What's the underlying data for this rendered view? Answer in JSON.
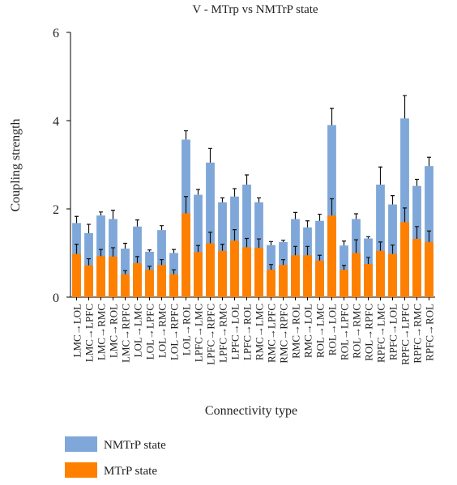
{
  "chart_data": {
    "type": "bar",
    "title": "V - MTrp vs NMTrP state",
    "x_label": "Connectivity type",
    "y_label": "Coupling strength",
    "categories": [
      "LMC→LOL",
      "LMC→LPFC",
      "LMC→RMC",
      "LMC→ROL",
      "LMC→RPFC",
      "LOL→LMC",
      "LOL→LPFC",
      "LOL→RMC",
      "LOL→RPFC",
      "LOL→ROL",
      "LPFC→LMC",
      "LPFC→RPFC",
      "LPFC→RMC",
      "LPFC→LOL",
      "LPFC→ROL",
      "RMC→LMC",
      "RMC→LPFC",
      "RMC→RPFC",
      "RMC→ROL",
      "RMC→LOL",
      "ROL→LMC",
      "ROL→LOL",
      "ROL→LPFC",
      "ROL→RMC",
      "ROL→RPFC",
      "RPFC→LMC",
      "RPFC→LOL",
      "RPFC→LPFC",
      "RPFC→RMC",
      "RPFC→ROL"
    ],
    "series": [
      {
        "name": "NMTrP state",
        "color": "#7fa7d9",
        "values": [
          1.68,
          1.45,
          1.85,
          1.77,
          1.1,
          1.6,
          1.03,
          1.52,
          1.0,
          3.57,
          2.32,
          3.05,
          2.15,
          2.28,
          2.55,
          2.15,
          1.18,
          1.25,
          1.77,
          1.58,
          1.73,
          3.9,
          1.17,
          1.77,
          1.33,
          2.55,
          2.1,
          4.05,
          2.52,
          2.97
        ],
        "errors": [
          0.15,
          0.2,
          0.08,
          0.2,
          0.12,
          0.15,
          0.04,
          0.1,
          0.08,
          0.2,
          0.12,
          0.32,
          0.1,
          0.18,
          0.22,
          0.1,
          0.08,
          0.04,
          0.15,
          0.15,
          0.15,
          0.38,
          0.1,
          0.12,
          0.04,
          0.4,
          0.2,
          0.52,
          0.15,
          0.2
        ]
      },
      {
        "name": "MTrP state",
        "color": "#ff8000",
        "values": [
          0.98,
          0.72,
          0.93,
          0.92,
          0.52,
          0.77,
          0.62,
          0.73,
          0.52,
          1.9,
          1.02,
          1.22,
          1.05,
          1.28,
          1.13,
          1.12,
          0.62,
          0.73,
          0.95,
          0.95,
          0.83,
          1.85,
          0.62,
          1.0,
          0.75,
          1.05,
          0.98,
          1.7,
          1.32,
          1.25
        ],
        "errors": [
          0.22,
          0.15,
          0.15,
          0.2,
          0.08,
          0.15,
          0.08,
          0.12,
          0.1,
          0.38,
          0.15,
          0.25,
          0.15,
          0.25,
          0.2,
          0.2,
          0.12,
          0.12,
          0.2,
          0.2,
          0.12,
          0.38,
          0.1,
          0.3,
          0.15,
          0.2,
          0.2,
          0.32,
          0.28,
          0.25
        ]
      }
    ],
    "ylim": [
      0,
      6
    ],
    "yticks": [
      0,
      2,
      4,
      6
    ],
    "grid": false
  }
}
